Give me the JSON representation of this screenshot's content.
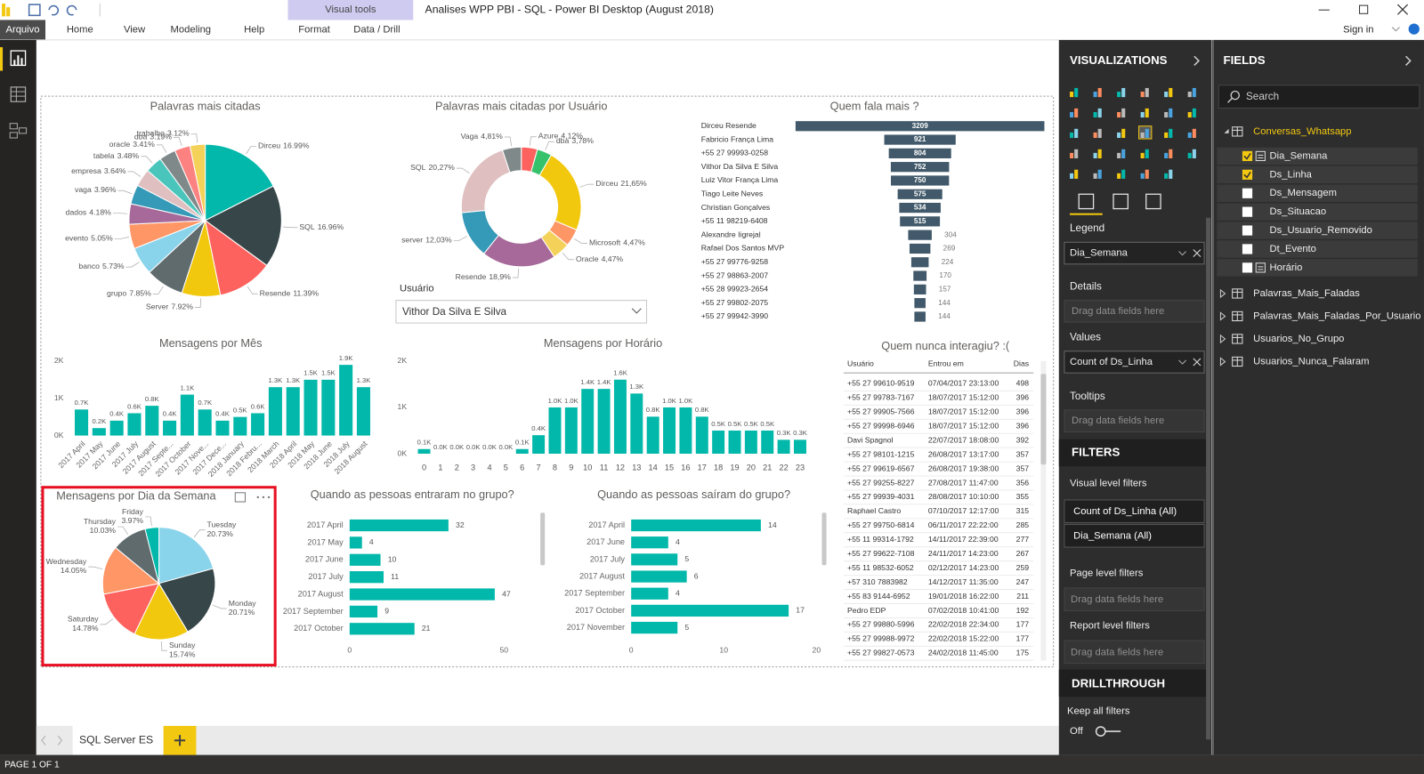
{
  "window": {
    "title": "Analises WPP PBI - SQL - Power BI Desktop (August 2018)",
    "contextual_tab": "Visual tools",
    "sign_in": "Sign in"
  },
  "ribbon": {
    "tabs": [
      "Arquivo",
      "Home",
      "View",
      "Modeling",
      "Help",
      "Format",
      "Data / Drill"
    ]
  },
  "visuals": {
    "words": {
      "type": "pie",
      "title": "Palavras mais citadas",
      "categories": [
        "Dirceu",
        "SQL",
        "Resende",
        "Server",
        "grupo",
        "banco",
        "evento",
        "dados",
        "vaga",
        "empresa",
        "tabela",
        "oracle",
        "dba",
        "trabalho"
      ],
      "values": [
        16.99,
        16.96,
        11.39,
        7.92,
        7.85,
        5.73,
        5.05,
        4.18,
        3.96,
        3.64,
        3.48,
        3.41,
        3.19,
        3.12
      ],
      "value_labels": [
        "16.99%",
        "16.96%",
        "11.39%",
        "7.92%",
        "7.85%",
        "5.73%",
        "5.05%",
        "4.18%",
        "3.96%",
        "3.64%",
        "3.48%",
        "3.41%",
        "3.19%",
        "3.12%"
      ],
      "colors": [
        "#01B8AA",
        "#374649",
        "#FD625E",
        "#F2C80F",
        "#5F6B6D",
        "#8AD4EB",
        "#FE9666",
        "#A66999",
        "#3599B8",
        "#DFBFBF",
        "#4AC5BB",
        "#7F898A",
        "#FB8281",
        "#F4D25A"
      ]
    },
    "words_by_user": {
      "type": "donut",
      "title": "Palavras mais citadas por Usuário",
      "categories": [
        "Azure",
        "dba",
        "Dirceu",
        "Microsoft",
        "Oracle",
        "Resende",
        "server",
        "SQL",
        "Vaga"
      ],
      "values": [
        4.12,
        3.78,
        21.65,
        4.47,
        4.47,
        18.9,
        12.03,
        20.27,
        4.81
      ],
      "value_labels": [
        "4,12%",
        "3,78%",
        "21,65%",
        "4,47%",
        "4,47%",
        "18,9%",
        "12,03%",
        "20,27%",
        "4,81%"
      ],
      "colors": [
        "#FD625E",
        "#36C26B",
        "#F2C80F",
        "#FE9666",
        "#F4D25A",
        "#A66999",
        "#3599B8",
        "#DFBFBF",
        "#7F898A"
      ]
    },
    "user_slicer": {
      "label": "Usuário",
      "selected": "Vithor Da Silva E Silva"
    },
    "top_talkers": {
      "type": "funnel",
      "title": "Quem fala mais ?",
      "color": "#41596A",
      "categories": [
        "Dirceu Resende",
        "Fabricio França Lima",
        "+55 27 99993-0258",
        "Vithor Da Silva E Silva",
        "Luiz Vitor França Lima",
        "Tiago Leite Neves",
        "Christian Gonçalves",
        "+55 11 98219-6408",
        "Alexandre Iigrejal",
        "Rafael Dos Santos MVP",
        "+55 27 99776-9258",
        "+55 27 98863-2007",
        "+55 28 99923-2654",
        "+55 27 99802-2075",
        "+55 27 99942-3990"
      ],
      "values": [
        3209,
        921,
        804,
        752,
        750,
        575,
        534,
        515,
        304,
        269,
        224,
        170,
        157,
        144,
        144
      ]
    },
    "by_month": {
      "type": "column",
      "title": "Mensagens por Mês",
      "color": "#01B8AA",
      "categories": [
        "2017 April",
        "2017 May",
        "2017 June",
        "2017 July",
        "2017 August",
        "2017 Septe...",
        "2017 October",
        "2017 Nove...",
        "2017 Dece...",
        "2018 January",
        "2018 Febru...",
        "2018 March",
        "2018 April",
        "2018 May",
        "2018 June",
        "2018 July",
        "2018 August"
      ],
      "values": [
        700,
        200,
        400,
        600,
        800,
        400,
        1100,
        700,
        400,
        500,
        600,
        1300,
        1300,
        1500,
        1500,
        1900,
        1300
      ],
      "value_labels": [
        "0.7K",
        "0.2K",
        "0.4K",
        "0.6K",
        "0.8K",
        "0.4K",
        "1.1K",
        "0.7K",
        "0.4K",
        "0.5K",
        "0.6K",
        "1.3K",
        "1.3K",
        "1.5K",
        "1.5K",
        "1.9K",
        "1.3K"
      ],
      "ylim": [
        0,
        2000
      ],
      "yticks": [
        {
          "value": 0,
          "label": "0K"
        },
        {
          "value": 1000,
          "label": "1K"
        },
        {
          "value": 2000,
          "label": "2K"
        }
      ]
    },
    "by_hour": {
      "type": "column",
      "title": "Mensagens por Horário",
      "color": "#01B8AA",
      "categories": [
        "0",
        "1",
        "2",
        "3",
        "4",
        "5",
        "6",
        "7",
        "8",
        "9",
        "10",
        "11",
        "12",
        "13",
        "14",
        "15",
        "16",
        "17",
        "18",
        "19",
        "20",
        "21",
        "22",
        "23"
      ],
      "values": [
        100,
        0,
        0,
        0,
        0,
        0,
        100,
        400,
        1000,
        1000,
        1400,
        1400,
        1600,
        1300,
        800,
        1000,
        1000,
        800,
        500,
        500,
        500,
        500,
        300,
        300
      ],
      "value_labels": [
        "0.1K",
        "0.0K",
        "0.0K",
        "0.0K",
        "0.0K",
        "0.0K",
        "0.1K",
        "0.4K",
        "1.0K",
        "1.0K",
        "1.4K",
        "1.4K",
        "1.6K",
        "1.3K",
        "0.8K",
        "1.0K",
        "1.0K",
        "0.8K",
        "0.5K",
        "0.5K",
        "0.5K",
        "0.5K",
        "0.3K",
        "0.3K"
      ],
      "ylim": [
        0,
        2000
      ],
      "yticks": [
        {
          "value": 0,
          "label": "0K"
        },
        {
          "value": 1000,
          "label": "1K"
        },
        {
          "value": 2000,
          "label": "2K"
        }
      ]
    },
    "by_weekday": {
      "type": "pie",
      "title": "Mensagens por Dia da Semana",
      "selected": true,
      "categories": [
        "Tuesday",
        "Monday",
        "Sunday",
        "Saturday",
        "Wednesday",
        "Thursday",
        "Friday"
      ],
      "values": [
        20.73,
        20.71,
        15.74,
        14.78,
        14.05,
        10.03,
        3.97
      ],
      "value_labels": [
        "20.73%",
        "20.71%",
        "15.74%",
        "14.78%",
        "14.05%",
        "10.03%",
        "3.97%"
      ],
      "colors": [
        "#8AD4EB",
        "#374649",
        "#F2C80F",
        "#FD625E",
        "#FE9666",
        "#5F6B6D",
        "#01B8AA"
      ]
    },
    "joined": {
      "type": "hbar",
      "title": "Quando as pessoas entraram no grupo?",
      "color": "#01B8AA",
      "categories": [
        "2017 April",
        "2017 May",
        "2017 June",
        "2017 July",
        "2017 August",
        "2017 September",
        "2017 October"
      ],
      "values": [
        32,
        4,
        10,
        11,
        47,
        9,
        21
      ],
      "xlim": [
        0,
        50
      ],
      "xticks": [
        0,
        50
      ]
    },
    "left": {
      "type": "hbar",
      "title": "Quando as pessoas saíram do grupo?",
      "color": "#01B8AA",
      "categories": [
        "2017 April",
        "2017 June",
        "2017 July",
        "2017 August",
        "2017 September",
        "2017 October",
        "2017 November"
      ],
      "values": [
        14,
        4,
        5,
        6,
        4,
        17,
        5
      ],
      "xlim": [
        0,
        20
      ],
      "xticks": [
        0,
        10,
        20
      ]
    },
    "never_interacted": {
      "type": "table",
      "title": "Quem nunca interagiu? :(",
      "columns": [
        "Usuário",
        "Entrou em",
        "Dias"
      ],
      "rows": [
        [
          "+55 27 99610-9519",
          "07/04/2017 23:13:00",
          498
        ],
        [
          "+55 27 99783-7167",
          "18/07/2017 15:12:00",
          396
        ],
        [
          "+55 27 99905-7566",
          "18/07/2017 15:12:00",
          396
        ],
        [
          "+55 27 99998-6946",
          "18/07/2017 15:12:00",
          396
        ],
        [
          "Davi Spagnol",
          "22/07/2017 18:08:00",
          392
        ],
        [
          "+55 27 98101-1215",
          "26/08/2017 13:17:00",
          357
        ],
        [
          "+55 27 99619-6567",
          "26/08/2017 19:38:00",
          357
        ],
        [
          "+55 27 99255-8227",
          "27/08/2017 11:47:00",
          356
        ],
        [
          "+55 27 99939-4031",
          "28/08/2017 10:10:00",
          355
        ],
        [
          "Raphael Castro",
          "07/10/2017 12:17:00",
          315
        ],
        [
          "+55 27 99750-6814",
          "06/11/2017 22:22:00",
          285
        ],
        [
          "+55 11 99314-1792",
          "14/11/2017 22:39:00",
          277
        ],
        [
          "+55 27 99622-7108",
          "24/11/2017 14:23:00",
          267
        ],
        [
          "+55 11 98532-6052",
          "02/12/2017 14:23:00",
          259
        ],
        [
          "+57 310 7883982",
          "14/12/2017 11:35:00",
          247
        ],
        [
          "+55 83 9144-6952",
          "19/01/2018 16:22:00",
          211
        ],
        [
          "Pedro EDP",
          "07/02/2018 10:41:00",
          192
        ],
        [
          "+55 27 99880-5996",
          "22/02/2018 22:34:00",
          177
        ],
        [
          "+55 27 99988-9972",
          "22/02/2018 15:22:00",
          177
        ],
        [
          "+55 27 99827-0573",
          "24/02/2018 11:45:00",
          175
        ]
      ]
    }
  },
  "visualizations_pane": {
    "title": "VISUALIZATIONS",
    "wells": [
      {
        "label": "Legend",
        "field": "Dia_Semana"
      },
      {
        "label": "Details",
        "placeholder": "Drag data fields here"
      },
      {
        "label": "Values",
        "field": "Count of Ds_Linha"
      },
      {
        "label": "Tooltips",
        "placeholder": "Drag data fields here"
      }
    ],
    "filters": {
      "title": "FILTERS",
      "visual_label": "Visual level filters",
      "visual": [
        "Count of Ds_Linha (All)",
        "Dia_Semana (All)"
      ],
      "page_label": "Page level filters",
      "page_placeholder": "Drag data fields here",
      "report_label": "Report level filters",
      "report_placeholder": "Drag data fields here"
    },
    "drillthrough": {
      "title": "DRILLTHROUGH",
      "keep_label": "Keep all filters",
      "keep_state": "Off"
    }
  },
  "fields_pane": {
    "title": "FIELDS",
    "search": "Search",
    "tables": [
      {
        "name": "Conversas_Whatsapp",
        "expanded": true,
        "fields": [
          {
            "name": "Dia_Semana",
            "checked": true,
            "hierarchy": true
          },
          {
            "name": "Ds_Linha",
            "checked": true
          },
          {
            "name": "Ds_Mensagem",
            "checked": false
          },
          {
            "name": "Ds_Situacao",
            "checked": false
          },
          {
            "name": "Ds_Usuario_Removido",
            "checked": false
          },
          {
            "name": "Dt_Evento",
            "checked": false
          },
          {
            "name": "Horário",
            "checked": false,
            "hierarchy": true
          }
        ]
      },
      {
        "name": "Palavras_Mais_Faladas",
        "expanded": false
      },
      {
        "name": "Palavras_Mais_Faladas_Por_Usuario",
        "expanded": false
      },
      {
        "name": "Usuarios_No_Grupo",
        "expanded": false
      },
      {
        "name": "Usuarios_Nunca_Falaram",
        "expanded": false
      }
    ]
  },
  "pages": {
    "tabs": [
      "SQL Server ES"
    ],
    "status": "PAGE 1 OF 1"
  }
}
